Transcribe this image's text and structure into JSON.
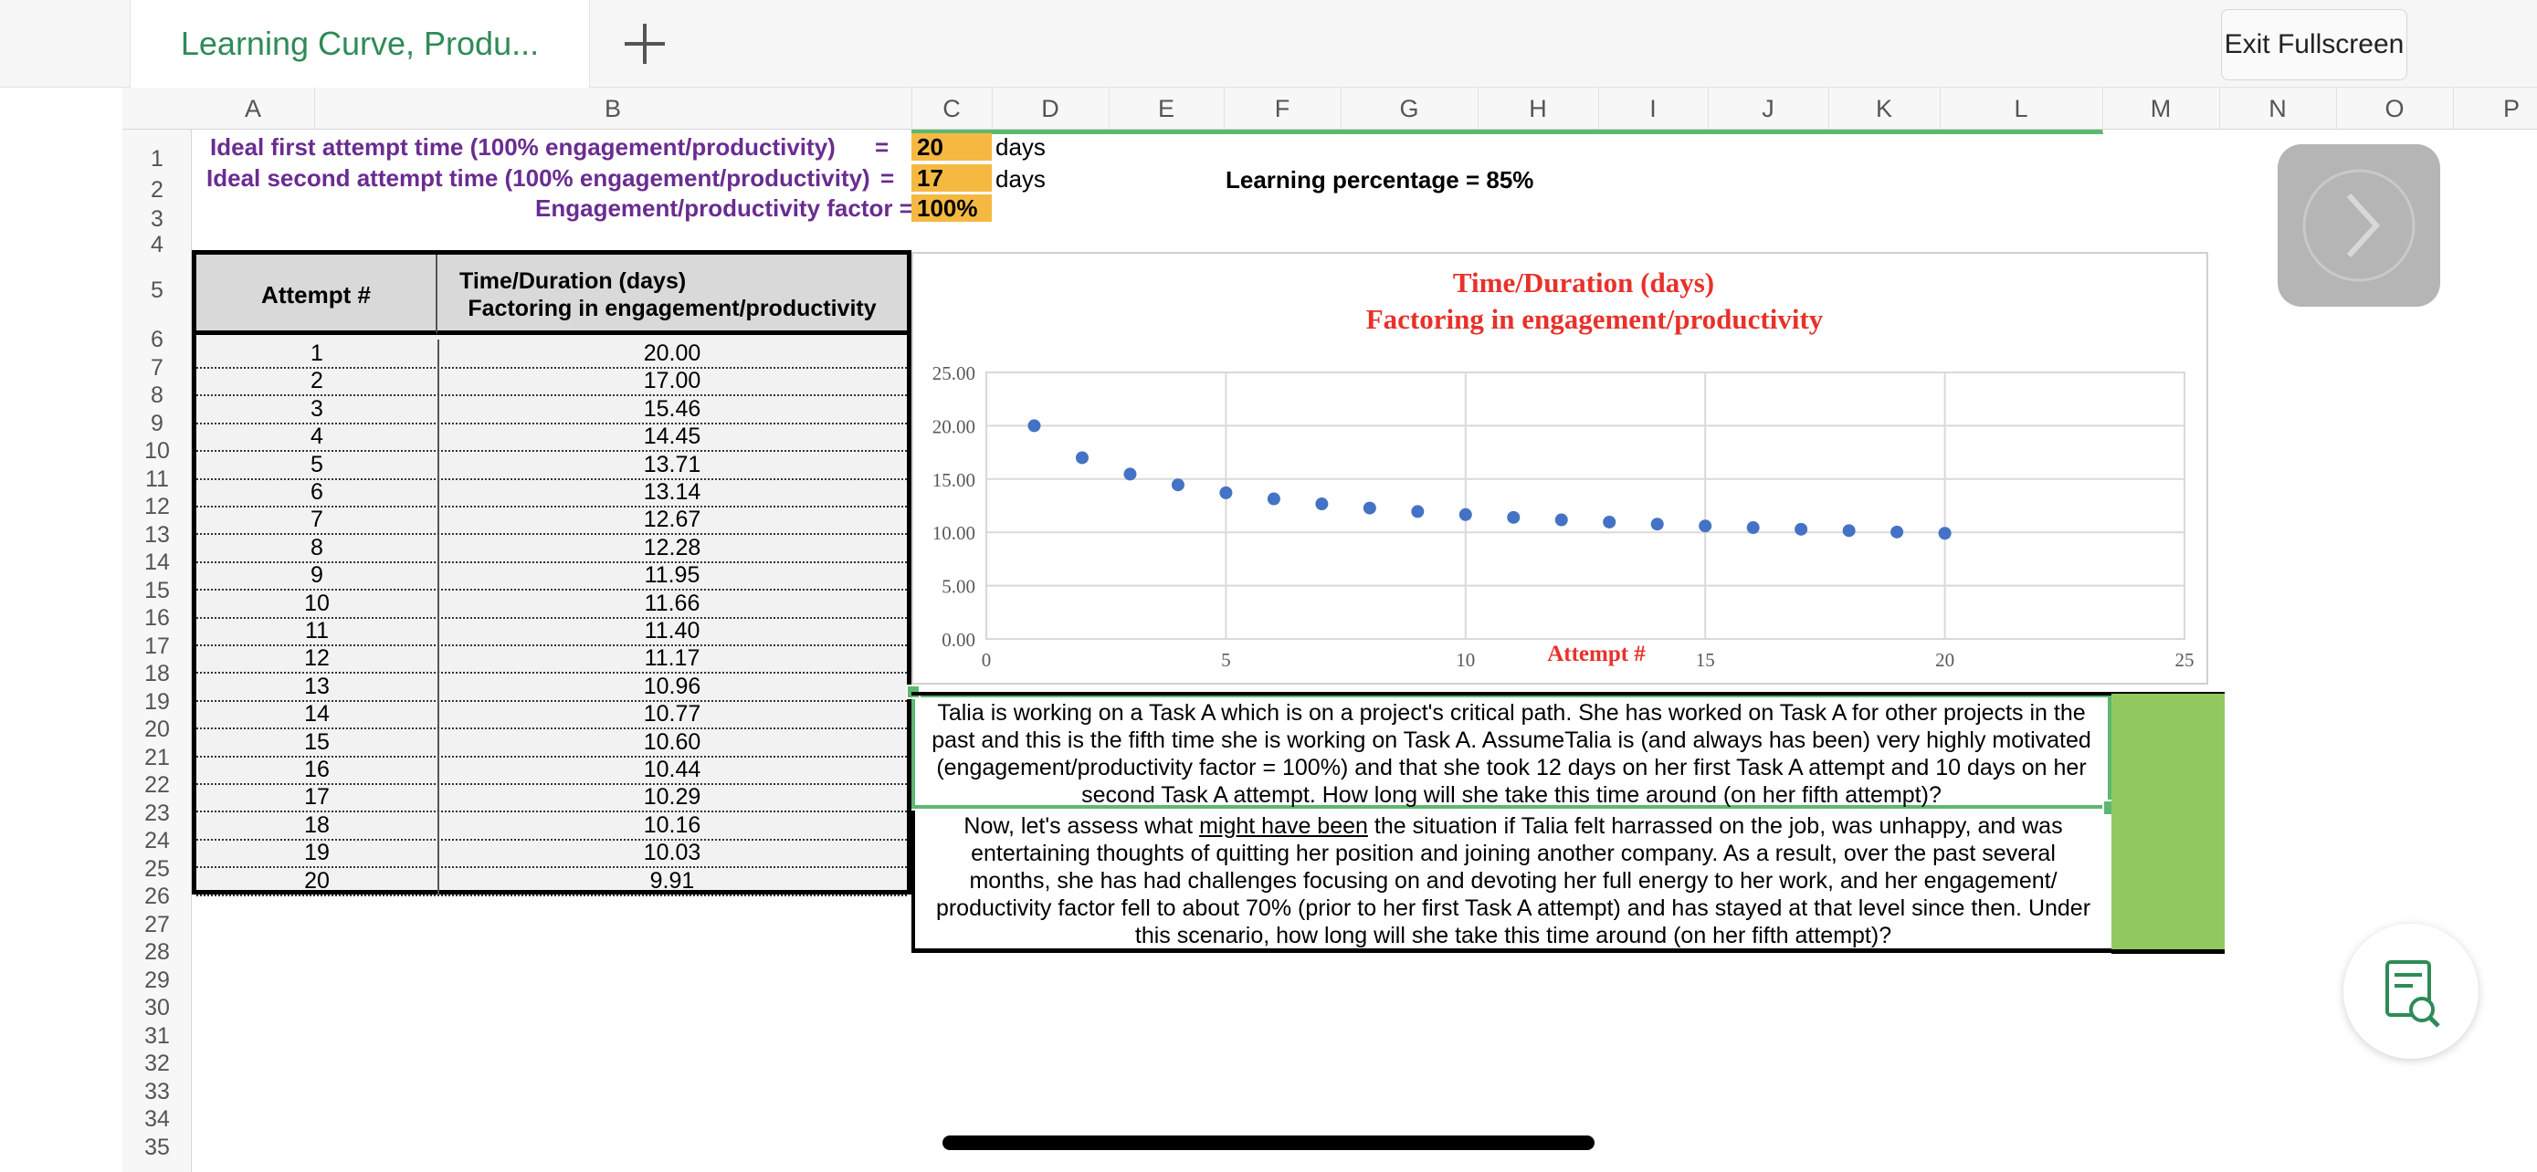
{
  "tab": {
    "title": "Learning Curve, Produ..."
  },
  "toolbar": {
    "exit_label": "Exit Fullscreen"
  },
  "columns": [
    "A",
    "B",
    "C",
    "D",
    "E",
    "F",
    "G",
    "H",
    "I",
    "J",
    "K",
    "L",
    "M",
    "N",
    "O",
    "P"
  ],
  "rows": [
    "1",
    "2",
    "3",
    "4",
    "5",
    "6",
    "7",
    "8",
    "9",
    "10",
    "11",
    "12",
    "13",
    "14",
    "15",
    "16",
    "17",
    "18",
    "19",
    "20",
    "21",
    "22",
    "23",
    "24",
    "25",
    "26",
    "27",
    "28",
    "29",
    "30",
    "31",
    "32",
    "33",
    "34",
    "35"
  ],
  "inputs": {
    "first_label": "Ideal first attempt time (100% engagement/productivity)",
    "first_eq": "=",
    "first_value": "20",
    "first_unit": "days",
    "second_label": "Ideal second attempt time (100% engagement/productivity)",
    "second_eq": "=",
    "second_value": "17",
    "second_unit": "days",
    "factor_label": "Engagement/productivity factor =",
    "factor_value": "100%",
    "learning_label": "Learning percentage =",
    "learning_value": "85%"
  },
  "table": {
    "header_attempt": "Attempt #",
    "header_time_line1": "Time/Duration  (days)",
    "header_time_line2": "Factoring in engagement/productivity",
    "attempts": [
      "1",
      "2",
      "3",
      "4",
      "5",
      "6",
      "7",
      "8",
      "9",
      "10",
      "11",
      "12",
      "13",
      "14",
      "15",
      "16",
      "17",
      "18",
      "19",
      "20"
    ],
    "times": [
      "20.00",
      "17.00",
      "15.46",
      "14.45",
      "13.71",
      "13.14",
      "12.67",
      "12.28",
      "11.95",
      "11.66",
      "11.40",
      "11.17",
      "10.96",
      "10.77",
      "10.60",
      "10.44",
      "10.29",
      "10.16",
      "10.03",
      "9.91"
    ]
  },
  "chart_data": {
    "type": "scatter",
    "title": "Time/Duration  (days)",
    "subtitle": "Factoring in engagement/productivity",
    "xlabel": "Attempt #",
    "ylabel": "",
    "xlim": [
      0,
      25
    ],
    "ylim": [
      0,
      25
    ],
    "x_ticks": [
      "0",
      "5",
      "10",
      "15",
      "20",
      "25"
    ],
    "y_ticks": [
      "0.00",
      "5.00",
      "10.00",
      "15.00",
      "20.00",
      "25.00"
    ],
    "grid": true,
    "title_color": "#e8312a",
    "point_color": "#4472c4",
    "x": [
      1,
      2,
      3,
      4,
      5,
      6,
      7,
      8,
      9,
      10,
      11,
      12,
      13,
      14,
      15,
      16,
      17,
      18,
      19,
      20
    ],
    "y": [
      20.0,
      17.0,
      15.46,
      14.45,
      13.71,
      13.14,
      12.67,
      12.28,
      11.95,
      11.66,
      11.4,
      11.17,
      10.96,
      10.77,
      10.6,
      10.44,
      10.29,
      10.16,
      10.03,
      9.91
    ]
  },
  "question1": {
    "line1": "Talia is working on a Task A which is on a project's critical path. She has worked on Task A for other projects in the",
    "line2": "past and this is the fifth time she is working on Task A. AssumeTalia is (and always has been) very highly motivated",
    "line3": "(engagement/productivity factor = 100%) and that she took 12 days on her first Task A attempt and 10 days on her",
    "line4": "second Task A attempt. How long will she take this time around (on her fifth attempt)?"
  },
  "question2": {
    "line1_pre": "Now, let's assess what ",
    "line1_under": "might have been",
    "line1_post": " the situation if Talia felt harrassed on the job, was unhappy, and was",
    "line2": "entertaining thoughts of quitting her position and joining another company. As a result, over the past several",
    "line3": "months, she has had challenges focusing on and devoting her full energy to her work, and her engagement/",
    "line4": "productivity factor fell to about 70% (prior to her first Task A attempt) and has stayed at that level since then. Under",
    "line5": "this scenario, how long will she take this time around (on her fifth attempt)?"
  },
  "colors": {
    "accent_green": "#2e8b57",
    "answer_green": "#92c95e",
    "input_orange": "#f5b942",
    "label_purple": "#6a2c91"
  },
  "icons": {
    "add": "plus-icon",
    "next": "chevron-right-icon",
    "find": "document-search-icon"
  }
}
